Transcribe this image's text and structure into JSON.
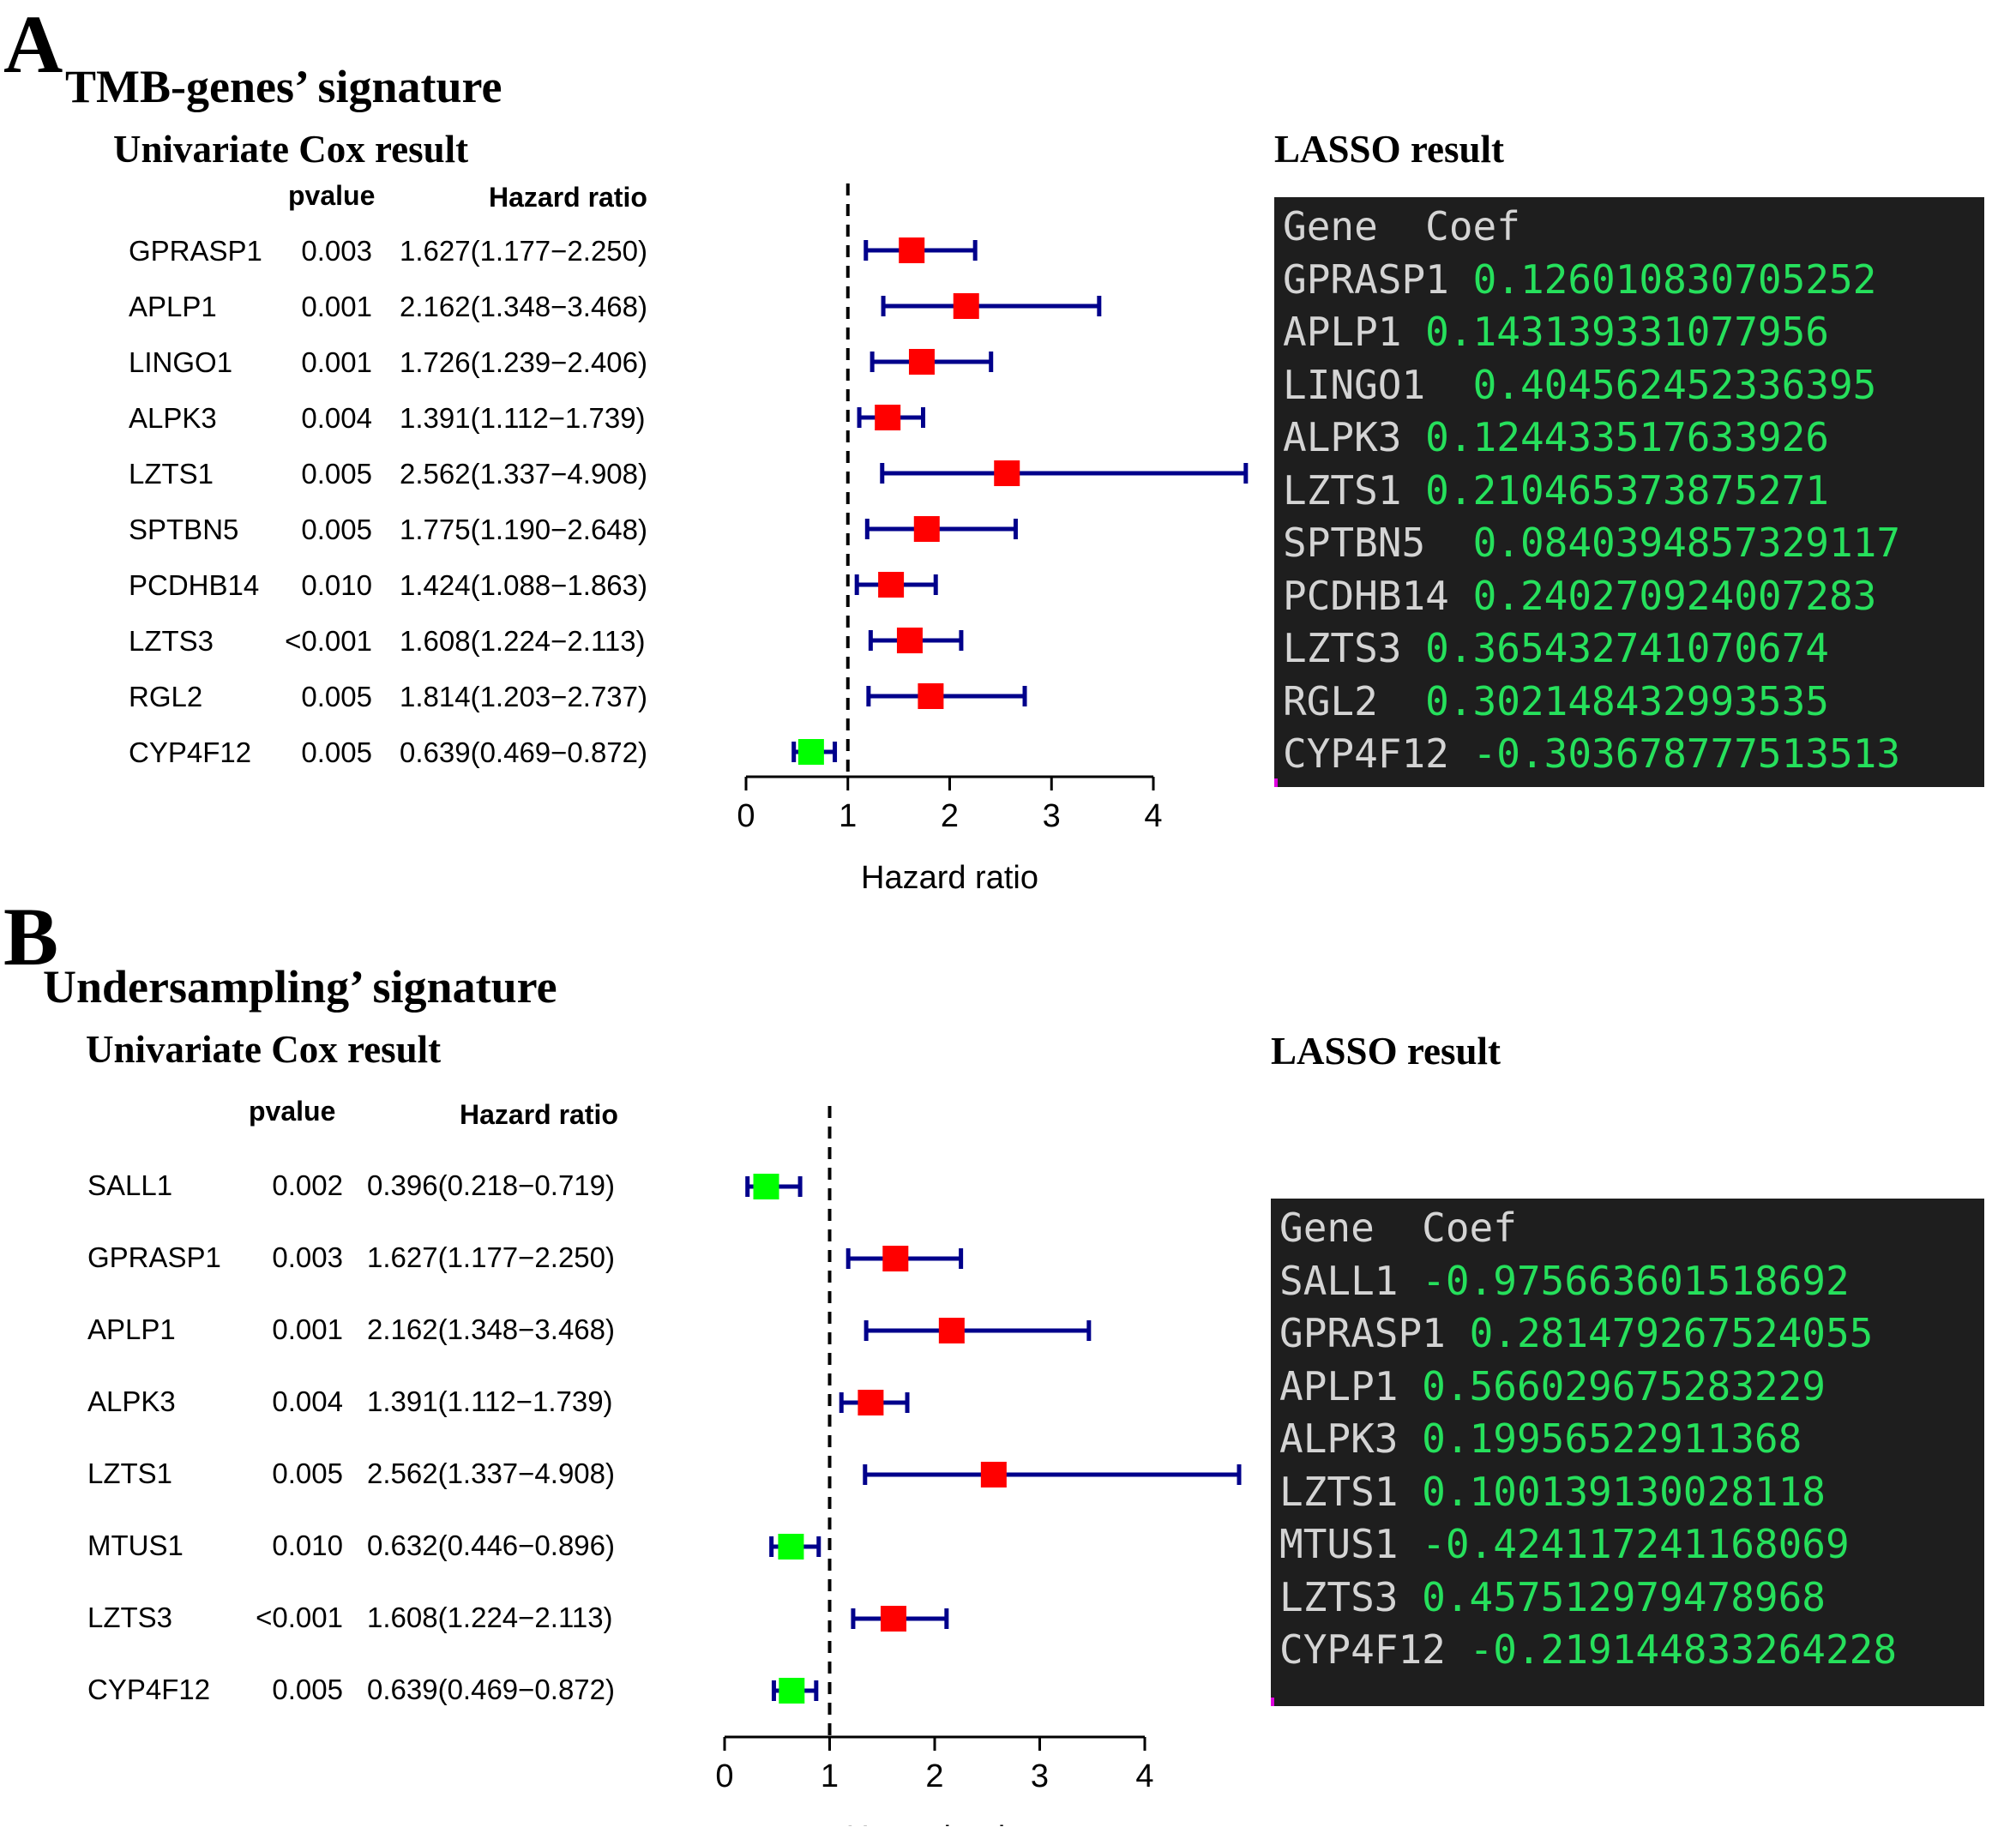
{
  "panels": [
    {
      "letter": "A",
      "title": "TMB-genes’ signature",
      "subtitle": "Univariate Cox result",
      "col_pvalue": "pvalue",
      "col_hr": "Hazard ratio",
      "lasso_title": "LASSO result",
      "lasso_header": "Gene  Coef",
      "rows": [
        {
          "gene": "GPRASP1",
          "pvalue": "0.003",
          "hr_text": "1.627(1.177−2.250)"
        },
        {
          "gene": "APLP1",
          "pvalue": "0.001",
          "hr_text": "2.162(1.348−3.468)"
        },
        {
          "gene": "LINGO1",
          "pvalue": "0.001",
          "hr_text": "1.726(1.239−2.406)"
        },
        {
          "gene": "ALPK3",
          "pvalue": "0.004",
          "hr_text": "1.391(1.112−1.739)"
        },
        {
          "gene": "LZTS1",
          "pvalue": "0.005",
          "hr_text": "2.562(1.337−4.908)"
        },
        {
          "gene": "SPTBN5",
          "pvalue": "0.005",
          "hr_text": "1.775(1.190−2.648)"
        },
        {
          "gene": "PCDHB14",
          "pvalue": "0.010",
          "hr_text": "1.424(1.088−1.863)"
        },
        {
          "gene": "LZTS3",
          "pvalue": "<0.001",
          "hr_text": "1.608(1.224−2.113)"
        },
        {
          "gene": "RGL2",
          "pvalue": "0.005",
          "hr_text": "1.814(1.203−2.737)"
        },
        {
          "gene": "CYP4F12",
          "pvalue": "0.005",
          "hr_text": "0.639(0.469−0.872)"
        }
      ],
      "lasso": [
        {
          "gene": "GPRASP1 ",
          "coef": "0.126010830705252"
        },
        {
          "gene": "APLP1 ",
          "coef": "0.143139331077956"
        },
        {
          "gene": "LINGO1  ",
          "coef": "0.404562452336395"
        },
        {
          "gene": "ALPK3 ",
          "coef": "0.124433517633926"
        },
        {
          "gene": "LZTS1 ",
          "coef": "0.210465373875271"
        },
        {
          "gene": "SPTBN5  ",
          "coef": "0.0840394857329117"
        },
        {
          "gene": "PCDHB14 ",
          "coef": "0.240270924007283"
        },
        {
          "gene": "LZTS3 ",
          "coef": "0.365432741070674"
        },
        {
          "gene": "RGL2  ",
          "coef": "0.302148432993535"
        },
        {
          "gene": "CYP4F12 ",
          "coef": "-0.303678777513513"
        }
      ]
    },
    {
      "letter": "B",
      "title": "Undersampling’ signature",
      "subtitle": "Univariate Cox result",
      "col_pvalue": "pvalue",
      "col_hr": "Hazard ratio",
      "lasso_title": "LASSO result",
      "lasso_header": "Gene  Coef",
      "rows": [
        {
          "gene": "SALL1",
          "pvalue": "0.002",
          "hr_text": "0.396(0.218−0.719)"
        },
        {
          "gene": "GPRASP1",
          "pvalue": "0.003",
          "hr_text": "1.627(1.177−2.250)"
        },
        {
          "gene": "APLP1",
          "pvalue": "0.001",
          "hr_text": "2.162(1.348−3.468)"
        },
        {
          "gene": "ALPK3",
          "pvalue": "0.004",
          "hr_text": "1.391(1.112−1.739)"
        },
        {
          "gene": "LZTS1",
          "pvalue": "0.005",
          "hr_text": "2.562(1.337−4.908)"
        },
        {
          "gene": "MTUS1",
          "pvalue": "0.010",
          "hr_text": "0.632(0.446−0.896)"
        },
        {
          "gene": "LZTS3",
          "pvalue": "<0.001",
          "hr_text": "1.608(1.224−2.113)"
        },
        {
          "gene": "CYP4F12",
          "pvalue": "0.005",
          "hr_text": "0.639(0.469−0.872)"
        }
      ],
      "lasso": [
        {
          "gene": "SALL1 ",
          "coef": "-0.975663601518692"
        },
        {
          "gene": "GPRASP1 ",
          "coef": "0.281479267524055"
        },
        {
          "gene": "APLP1 ",
          "coef": "0.566029675283229"
        },
        {
          "gene": "ALPK3 ",
          "coef": "0.19956522911368"
        },
        {
          "gene": "LZTS1 ",
          "coef": "0.100139130028118"
        },
        {
          "gene": "MTUS1 ",
          "coef": "-0.424117241168069"
        },
        {
          "gene": "LZTS3 ",
          "coef": "0.457512979478968"
        },
        {
          "gene": "CYP4F12 ",
          "coef": "-0.219144833264228"
        }
      ]
    }
  ],
  "chart_data": [
    {
      "type": "forest",
      "xlabel": "Hazard ratio",
      "xlim": [
        0,
        4
      ],
      "xticks": [
        "0",
        "1",
        "2",
        "3",
        "4"
      ],
      "reference_line": 1,
      "categories": [
        "GPRASP1",
        "APLP1",
        "LINGO1",
        "ALPK3",
        "LZTS1",
        "SPTBN5",
        "PCDHB14",
        "LZTS3",
        "RGL2",
        "CYP4F12"
      ],
      "hr": [
        1.627,
        2.162,
        1.726,
        1.391,
        2.562,
        1.775,
        1.424,
        1.608,
        1.814,
        0.639
      ],
      "lower": [
        1.177,
        1.348,
        1.239,
        1.112,
        1.337,
        1.19,
        1.088,
        1.224,
        1.203,
        0.469
      ],
      "upper": [
        2.25,
        3.468,
        2.406,
        1.739,
        4.908,
        2.648,
        1.863,
        2.113,
        2.737,
        0.872
      ],
      "colors": {
        "risk": "#ff0000",
        "protective": "#00ff00",
        "ci": "#00008b"
      }
    },
    {
      "type": "forest",
      "xlabel": "Hazard ratio",
      "xlim": [
        0,
        4
      ],
      "xticks": [
        "0",
        "1",
        "2",
        "3",
        "4"
      ],
      "reference_line": 1,
      "categories": [
        "SALL1",
        "GPRASP1",
        "APLP1",
        "ALPK3",
        "LZTS1",
        "MTUS1",
        "LZTS3",
        "CYP4F12"
      ],
      "hr": [
        0.396,
        1.627,
        2.162,
        1.391,
        2.562,
        0.632,
        1.608,
        0.639
      ],
      "lower": [
        0.218,
        1.177,
        1.348,
        1.112,
        1.337,
        0.446,
        1.224,
        0.469
      ],
      "upper": [
        0.719,
        2.25,
        3.468,
        1.739,
        4.908,
        0.896,
        2.113,
        0.872
      ],
      "colors": {
        "risk": "#ff0000",
        "protective": "#00ff00",
        "ci": "#00008b"
      }
    }
  ]
}
